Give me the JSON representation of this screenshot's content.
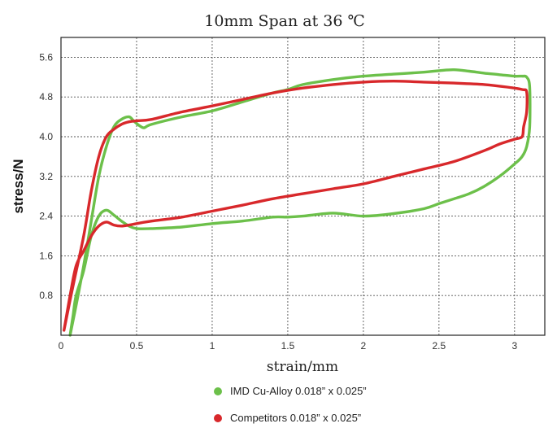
{
  "chart_data": {
    "type": "line",
    "title": "10mm Span at 36 ℃",
    "xlabel": "strain/mm",
    "ylabel": "stress/N",
    "xlim": [
      0,
      3.2
    ],
    "ylim": [
      0,
      6.0
    ],
    "x_ticks": [
      "0",
      "0.5",
      "1",
      "1.5",
      "2",
      "2.5",
      "3"
    ],
    "x_tick_values": [
      0,
      0.5,
      1,
      1.5,
      2,
      2.5,
      3
    ],
    "y_ticks": [
      "0.8",
      "1.6",
      "2.4",
      "3.2",
      "4.0",
      "4.8",
      "5.6"
    ],
    "y_tick_values": [
      0.8,
      1.6,
      2.4,
      3.2,
      4.0,
      4.8,
      5.6
    ],
    "grid": true,
    "legend_position": "bottom",
    "series": [
      {
        "name": "IMD Cu-Alloy  0.018”  x 0.025”",
        "color": "#6cc04a",
        "x": [
          0.06,
          0.1,
          0.15,
          0.2,
          0.25,
          0.3,
          0.35,
          0.4,
          0.45,
          0.48,
          0.52,
          0.55,
          0.6,
          0.8,
          1.0,
          1.2,
          1.4,
          1.5,
          1.6,
          1.8,
          2.0,
          2.2,
          2.4,
          2.5,
          2.6,
          2.7,
          2.8,
          2.9,
          3.0,
          3.05,
          3.08,
          3.1,
          3.1,
          3.08,
          3.05,
          3.0,
          2.9,
          2.8,
          2.7,
          2.6,
          2.5,
          2.4,
          2.2,
          2.0,
          1.8,
          1.6,
          1.5,
          1.4,
          1.2,
          1.0,
          0.8,
          0.6,
          0.5,
          0.45,
          0.4,
          0.35,
          0.3,
          0.25,
          0.2,
          0.15,
          0.1,
          0.08,
          0.06
        ],
        "y": [
          0.0,
          0.6,
          1.4,
          2.3,
          3.2,
          3.8,
          4.2,
          4.35,
          4.4,
          4.32,
          4.22,
          4.18,
          4.25,
          4.4,
          4.52,
          4.7,
          4.88,
          4.95,
          5.05,
          5.15,
          5.22,
          5.26,
          5.3,
          5.33,
          5.35,
          5.32,
          5.28,
          5.25,
          5.22,
          5.22,
          5.2,
          5.0,
          4.2,
          3.8,
          3.6,
          3.45,
          3.2,
          3.0,
          2.85,
          2.75,
          2.65,
          2.55,
          2.45,
          2.4,
          2.46,
          2.4,
          2.38,
          2.38,
          2.3,
          2.25,
          2.18,
          2.15,
          2.15,
          2.2,
          2.3,
          2.42,
          2.52,
          2.4,
          2.0,
          1.3,
          0.8,
          0.4,
          0.0
        ]
      },
      {
        "name": "Competitors  0.018”  x 0.025”",
        "color": "#d8282b",
        "x": [
          0.02,
          0.08,
          0.15,
          0.2,
          0.25,
          0.3,
          0.35,
          0.4,
          0.45,
          0.5,
          0.6,
          0.8,
          1.0,
          1.2,
          1.4,
          1.6,
          1.8,
          2.0,
          2.2,
          2.4,
          2.6,
          2.8,
          2.95,
          3.05,
          3.08,
          3.08,
          3.06,
          3.05,
          3.0,
          2.9,
          2.8,
          2.6,
          2.4,
          2.2,
          2.0,
          1.8,
          1.6,
          1.4,
          1.2,
          1.0,
          0.8,
          0.6,
          0.5,
          0.45,
          0.4,
          0.35,
          0.3,
          0.25,
          0.2,
          0.15,
          0.1,
          0.06,
          0.02
        ],
        "y": [
          0.1,
          1.0,
          2.0,
          2.9,
          3.6,
          4.0,
          4.15,
          4.25,
          4.3,
          4.32,
          4.35,
          4.5,
          4.62,
          4.75,
          4.88,
          4.98,
          5.05,
          5.1,
          5.12,
          5.1,
          5.08,
          5.05,
          5.0,
          4.95,
          4.9,
          4.5,
          4.2,
          4.0,
          3.95,
          3.85,
          3.72,
          3.5,
          3.35,
          3.2,
          3.05,
          2.95,
          2.85,
          2.75,
          2.62,
          2.5,
          2.38,
          2.3,
          2.25,
          2.22,
          2.2,
          2.22,
          2.28,
          2.2,
          2.0,
          1.7,
          1.4,
          0.8,
          0.1
        ]
      }
    ]
  }
}
